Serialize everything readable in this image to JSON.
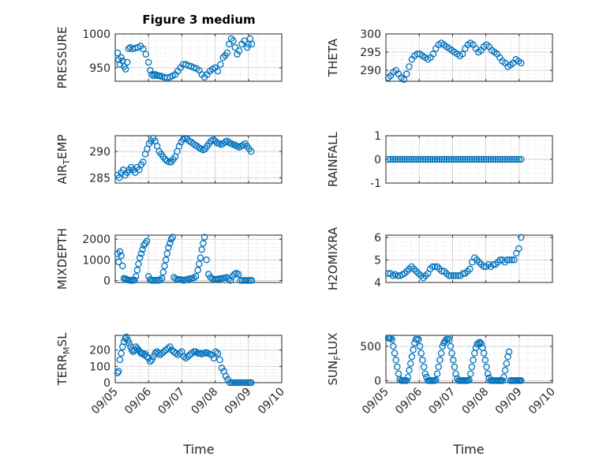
{
  "figure": {
    "title": "Figure 3 medium"
  },
  "colors": {
    "marker": "#0072bd",
    "axis": "#262626",
    "grid": "#d0d0d0"
  },
  "chart_data": [
    {
      "type": "scatter",
      "ylabel": "PRESSURE",
      "ylim": [
        930,
        1000
      ],
      "yticks": [
        950,
        1000
      ],
      "xlim": [
        0,
        5
      ],
      "x": [
        0.07,
        0.1,
        0.14,
        0.18,
        0.22,
        0.27,
        0.31,
        0.36,
        0.4,
        0.45,
        0.52,
        0.6,
        0.68,
        0.76,
        0.84,
        0.92,
        1.0,
        1.05,
        1.1,
        1.15,
        1.2,
        1.25,
        1.3,
        1.35,
        1.4,
        1.48,
        1.56,
        1.64,
        1.72,
        1.8,
        1.88,
        1.96,
        2.04,
        2.12,
        2.2,
        2.28,
        2.36,
        2.44,
        2.52,
        2.6,
        2.68,
        2.76,
        2.84,
        2.92,
        3.0,
        3.08,
        3.16,
        3.24,
        3.3,
        3.36,
        3.42,
        3.48,
        3.54,
        3.6,
        3.66,
        3.72,
        3.8,
        3.88,
        3.96,
        4.0,
        4.05,
        4.1
      ],
      "y": [
        972,
        962,
        955,
        965,
        960,
        952,
        948,
        958,
        978,
        980,
        978,
        979,
        980,
        982,
        978,
        970,
        958,
        946,
        940,
        938,
        940,
        939,
        938,
        938,
        937,
        936,
        935,
        936,
        938,
        940,
        945,
        950,
        955,
        955,
        953,
        952,
        950,
        949,
        946,
        940,
        936,
        940,
        945,
        948,
        950,
        945,
        955,
        965,
        968,
        972,
        985,
        993,
        990,
        980,
        970,
        975,
        985,
        990,
        980,
        985,
        993,
        985
      ]
    },
    {
      "type": "scatter",
      "ylabel": "THETA",
      "ylim": [
        287,
        300
      ],
      "yticks": [
        290,
        295,
        300
      ],
      "xlim": [
        0,
        5
      ],
      "x": [
        0.07,
        0.14,
        0.22,
        0.3,
        0.38,
        0.46,
        0.54,
        0.62,
        0.7,
        0.78,
        0.86,
        0.94,
        1.02,
        1.1,
        1.18,
        1.26,
        1.34,
        1.42,
        1.5,
        1.58,
        1.66,
        1.74,
        1.82,
        1.9,
        1.98,
        2.06,
        2.14,
        2.22,
        2.3,
        2.38,
        2.46,
        2.54,
        2.62,
        2.7,
        2.78,
        2.86,
        2.94,
        3.02,
        3.1,
        3.18,
        3.26,
        3.34,
        3.42,
        3.5,
        3.58,
        3.66,
        3.74,
        3.82,
        3.9,
        3.98,
        4.06
      ],
      "y": [
        288,
        288.5,
        289.5,
        290,
        289,
        288,
        287.5,
        289,
        291,
        293,
        294,
        294.5,
        294.5,
        294,
        293.5,
        293,
        293.5,
        294.5,
        296,
        297,
        297.5,
        297,
        296.5,
        296,
        295.5,
        295,
        294.5,
        294,
        294.5,
        296,
        297,
        297.5,
        297,
        296,
        295,
        295.5,
        296.5,
        297,
        296.5,
        295.5,
        295,
        294.5,
        293.5,
        292.5,
        292,
        291,
        291.5,
        292,
        293,
        292.5,
        292
      ]
    },
    {
      "type": "scatter",
      "ylabel": "AIR_TEMP",
      "ylim": [
        284,
        293
      ],
      "yticks": [
        285,
        290
      ],
      "xlim": [
        0,
        5
      ],
      "x": [
        0.07,
        0.12,
        0.18,
        0.24,
        0.3,
        0.36,
        0.42,
        0.48,
        0.54,
        0.6,
        0.66,
        0.72,
        0.78,
        0.84,
        0.9,
        0.96,
        1.02,
        1.08,
        1.14,
        1.2,
        1.26,
        1.32,
        1.38,
        1.44,
        1.5,
        1.56,
        1.62,
        1.68,
        1.74,
        1.8,
        1.86,
        1.92,
        1.98,
        2.04,
        2.1,
        2.16,
        2.22,
        2.28,
        2.34,
        2.4,
        2.46,
        2.52,
        2.58,
        2.64,
        2.7,
        2.76,
        2.82,
        2.88,
        2.94,
        3.0,
        3.06,
        3.12,
        3.18,
        3.24,
        3.3,
        3.36,
        3.42,
        3.48,
        3.54,
        3.6,
        3.66,
        3.72,
        3.78,
        3.84,
        3.9,
        3.96,
        4.02,
        4.08
      ],
      "y": [
        285.5,
        285,
        286,
        286.5,
        285.5,
        286,
        286.5,
        287,
        286.5,
        286,
        287,
        286.5,
        287.5,
        288,
        289.5,
        290.5,
        291.5,
        292,
        292.5,
        292,
        291,
        290,
        289.5,
        289,
        288.5,
        288.2,
        288,
        288,
        288.5,
        289,
        290,
        291,
        291.8,
        292.3,
        292.5,
        292.4,
        292,
        291.8,
        291.5,
        291.2,
        291,
        290.7,
        290.5,
        290.3,
        290.5,
        291,
        291.5,
        292,
        292.2,
        292,
        291.6,
        291.5,
        291.3,
        291.5,
        291.8,
        292,
        291.7,
        291.5,
        291.3,
        291.2,
        291,
        290.8,
        291,
        291.2,
        291.5,
        291,
        290.5,
        290
      ]
    },
    {
      "type": "scatter",
      "ylabel": "RAINFALL",
      "ylim": [
        -1,
        1
      ],
      "yticks": [
        -1,
        0,
        1
      ],
      "xlim": [
        0,
        5
      ],
      "x": [
        0.07,
        0.14,
        0.21,
        0.28,
        0.35,
        0.42,
        0.49,
        0.56,
        0.63,
        0.7,
        0.77,
        0.84,
        0.91,
        0.98,
        1.05,
        1.12,
        1.19,
        1.26,
        1.33,
        1.4,
        1.47,
        1.54,
        1.61,
        1.68,
        1.75,
        1.82,
        1.89,
        1.96,
        2.03,
        2.1,
        2.17,
        2.24,
        2.31,
        2.38,
        2.45,
        2.52,
        2.59,
        2.66,
        2.73,
        2.8,
        2.87,
        2.94,
        3.01,
        3.08,
        3.15,
        3.22,
        3.29,
        3.36,
        3.43,
        3.5,
        3.57,
        3.64,
        3.71,
        3.78,
        3.85,
        3.92,
        3.99,
        4.06
      ],
      "y": [
        0,
        0,
        0,
        0,
        0,
        0,
        0,
        0,
        0,
        0,
        0,
        0,
        0,
        0,
        0,
        0,
        0,
        0,
        0,
        0,
        0,
        0,
        0,
        0,
        0,
        0,
        0,
        0,
        0,
        0,
        0,
        0,
        0,
        0,
        0,
        0,
        0,
        0,
        0,
        0,
        0,
        0,
        0,
        0,
        0,
        0,
        0,
        0,
        0,
        0,
        0,
        0,
        0,
        0,
        0,
        0,
        0,
        0
      ]
    },
    {
      "type": "scatter",
      "ylabel": "MIXDEPTH",
      "ylim": [
        -100,
        2200
      ],
      "yticks": [
        0,
        1000,
        2000
      ],
      "xlim": [
        0,
        5
      ],
      "x": [
        0.07,
        0.1,
        0.14,
        0.18,
        0.22,
        0.26,
        0.3,
        0.34,
        0.38,
        0.42,
        0.46,
        0.5,
        0.54,
        0.58,
        0.62,
        0.66,
        0.7,
        0.74,
        0.78,
        0.82,
        0.86,
        0.9,
        0.95,
        1.0,
        1.05,
        1.1,
        1.15,
        1.2,
        1.25,
        1.3,
        1.35,
        1.4,
        1.44,
        1.48,
        1.52,
        1.56,
        1.6,
        1.64,
        1.68,
        1.72,
        1.76,
        1.82,
        1.88,
        1.94,
        2.0,
        2.06,
        2.12,
        2.18,
        2.24,
        2.3,
        2.36,
        2.42,
        2.48,
        2.52,
        2.56,
        2.6,
        2.64,
        2.68,
        2.74,
        2.8,
        2.86,
        2.92,
        2.98,
        3.04,
        3.1,
        3.16,
        3.22,
        3.28,
        3.34,
        3.4,
        3.46,
        3.52,
        3.58,
        3.64,
        3.7,
        3.76,
        3.82,
        3.88,
        3.94,
        4.0,
        4.06,
        4.1
      ],
      "y": [
        1300,
        900,
        1400,
        1200,
        700,
        100,
        80,
        50,
        20,
        10,
        0,
        0,
        0,
        20,
        200,
        500,
        800,
        1100,
        1300,
        1500,
        1700,
        1800,
        1900,
        200,
        50,
        0,
        0,
        0,
        10,
        0,
        20,
        100,
        400,
        700,
        1000,
        1300,
        1600,
        1800,
        2000,
        2100,
        150,
        80,
        50,
        40,
        30,
        0,
        30,
        60,
        80,
        100,
        120,
        200,
        500,
        800,
        1100,
        1500,
        1800,
        2100,
        1000,
        300,
        150,
        80,
        50,
        50,
        80,
        80,
        100,
        120,
        150,
        80,
        0,
        200,
        300,
        350,
        300,
        0,
        0,
        0,
        0,
        0,
        0,
        0
      ]
    },
    {
      "type": "scatter",
      "ylabel": "H2OMIXRA",
      "ylim": [
        4,
        6.1
      ],
      "yticks": [
        4,
        5,
        6
      ],
      "xlim": [
        0,
        5
      ],
      "x": [
        0.07,
        0.14,
        0.21,
        0.28,
        0.35,
        0.42,
        0.49,
        0.56,
        0.63,
        0.7,
        0.77,
        0.84,
        0.91,
        0.98,
        1.05,
        1.12,
        1.19,
        1.26,
        1.33,
        1.4,
        1.47,
        1.54,
        1.61,
        1.68,
        1.75,
        1.82,
        1.89,
        1.96,
        2.03,
        2.1,
        2.17,
        2.24,
        2.31,
        2.38,
        2.45,
        2.52,
        2.59,
        2.66,
        2.73,
        2.8,
        2.87,
        2.94,
        3.01,
        3.08,
        3.15,
        3.22,
        3.29,
        3.36,
        3.43,
        3.5,
        3.57,
        3.64,
        3.71,
        3.78,
        3.85,
        3.92,
        3.99,
        4.06
      ],
      "y": [
        4.4,
        4.4,
        4.3,
        4.35,
        4.3,
        4.3,
        4.35,
        4.4,
        4.5,
        4.6,
        4.7,
        4.6,
        4.5,
        4.4,
        4.3,
        4.2,
        4.3,
        4.4,
        4.6,
        4.7,
        4.7,
        4.7,
        4.6,
        4.5,
        4.5,
        4.4,
        4.3,
        4.3,
        4.3,
        4.3,
        4.3,
        4.3,
        4.4,
        4.4,
        4.5,
        4.6,
        4.9,
        5.1,
        5.0,
        4.9,
        4.8,
        4.7,
        4.7,
        4.8,
        4.7,
        4.8,
        4.8,
        4.9,
        5.0,
        5.0,
        4.9,
        5.0,
        5.0,
        5.0,
        5.0,
        5.3,
        5.5,
        6.0
      ]
    },
    {
      "type": "scatter",
      "ylabel": "TERR_MSL",
      "ylim": [
        0,
        290
      ],
      "yticks": [
        0,
        100,
        200
      ],
      "xlim": [
        0,
        5
      ],
      "x": [
        0.07,
        0.1,
        0.14,
        0.18,
        0.22,
        0.26,
        0.3,
        0.34,
        0.38,
        0.42,
        0.46,
        0.5,
        0.54,
        0.58,
        0.62,
        0.66,
        0.7,
        0.74,
        0.78,
        0.82,
        0.86,
        0.9,
        0.95,
        1.0,
        1.05,
        1.1,
        1.15,
        1.2,
        1.25,
        1.3,
        1.35,
        1.4,
        1.46,
        1.52,
        1.58,
        1.64,
        1.7,
        1.76,
        1.82,
        1.88,
        1.94,
        2.0,
        2.06,
        2.12,
        2.18,
        2.24,
        2.3,
        2.36,
        2.42,
        2.48,
        2.54,
        2.6,
        2.66,
        2.72,
        2.78,
        2.84,
        2.9,
        2.96,
        3.02,
        3.08,
        3.14,
        3.2,
        3.26,
        3.32,
        3.38,
        3.44,
        3.5,
        3.56,
        3.62,
        3.68,
        3.74,
        3.8,
        3.86,
        3.92,
        3.98,
        4.04,
        4.08
      ],
      "y": [
        60,
        70,
        140,
        180,
        220,
        250,
        270,
        280,
        260,
        240,
        220,
        200,
        190,
        200,
        220,
        210,
        200,
        190,
        180,
        180,
        170,
        175,
        160,
        150,
        130,
        140,
        160,
        180,
        190,
        180,
        170,
        180,
        190,
        200,
        210,
        220,
        200,
        190,
        180,
        170,
        180,
        190,
        160,
        150,
        160,
        170,
        180,
        190,
        190,
        180,
        180,
        175,
        180,
        185,
        180,
        175,
        170,
        150,
        190,
        180,
        140,
        90,
        70,
        40,
        20,
        0,
        0,
        0,
        0,
        0,
        0,
        0,
        0,
        0,
        0,
        0,
        0
      ]
    },
    {
      "type": "scatter",
      "ylabel": "SUN_FLUX",
      "ylim": [
        -30,
        660
      ],
      "yticks": [
        0,
        500
      ],
      "xlim": [
        0,
        5
      ],
      "x": [
        0.07,
        0.1,
        0.14,
        0.18,
        0.22,
        0.26,
        0.3,
        0.34,
        0.38,
        0.42,
        0.46,
        0.5,
        0.54,
        0.58,
        0.62,
        0.66,
        0.7,
        0.74,
        0.78,
        0.82,
        0.86,
        0.9,
        0.94,
        0.98,
        1.02,
        1.06,
        1.1,
        1.14,
        1.18,
        1.22,
        1.26,
        1.3,
        1.34,
        1.38,
        1.42,
        1.46,
        1.5,
        1.54,
        1.58,
        1.62,
        1.66,
        1.7,
        1.74,
        1.78,
        1.82,
        1.86,
        1.9,
        1.94,
        1.98,
        2.02,
        2.06,
        2.1,
        2.14,
        2.18,
        2.22,
        2.26,
        2.3,
        2.34,
        2.38,
        2.42,
        2.46,
        2.5,
        2.54,
        2.58,
        2.62,
        2.66,
        2.7,
        2.74,
        2.78,
        2.82,
        2.86,
        2.9,
        2.94,
        2.98,
        3.02,
        3.06,
        3.1,
        3.14,
        3.18,
        3.22,
        3.26,
        3.3,
        3.34,
        3.38,
        3.42,
        3.46,
        3.5,
        3.54,
        3.58,
        3.62,
        3.66,
        3.7,
        3.74,
        3.78,
        3.82,
        3.86,
        3.9,
        3.94,
        3.98,
        4.02,
        4.06
      ],
      "y": [
        620,
        620,
        620,
        600,
        500,
        400,
        300,
        200,
        100,
        20,
        0,
        0,
        0,
        0,
        0,
        50,
        150,
        250,
        350,
        450,
        550,
        600,
        620,
        600,
        500,
        400,
        300,
        200,
        100,
        50,
        0,
        0,
        0,
        0,
        0,
        0,
        10,
        100,
        200,
        300,
        400,
        500,
        550,
        580,
        600,
        620,
        600,
        500,
        400,
        300,
        200,
        100,
        30,
        0,
        0,
        0,
        0,
        0,
        0,
        0,
        0,
        10,
        100,
        200,
        300,
        400,
        480,
        530,
        550,
        560,
        540,
        480,
        400,
        300,
        200,
        100,
        40,
        0,
        0,
        0,
        0,
        0,
        0,
        0,
        0,
        0,
        0,
        50,
        150,
        250,
        350,
        420,
        0,
        0,
        0,
        0,
        0,
        0,
        0,
        0,
        0
      ]
    }
  ],
  "xaxis": {
    "label": "Time",
    "ticks": [
      "09/05",
      "09/06",
      "09/07",
      "09/08",
      "09/09",
      "09/10"
    ]
  }
}
